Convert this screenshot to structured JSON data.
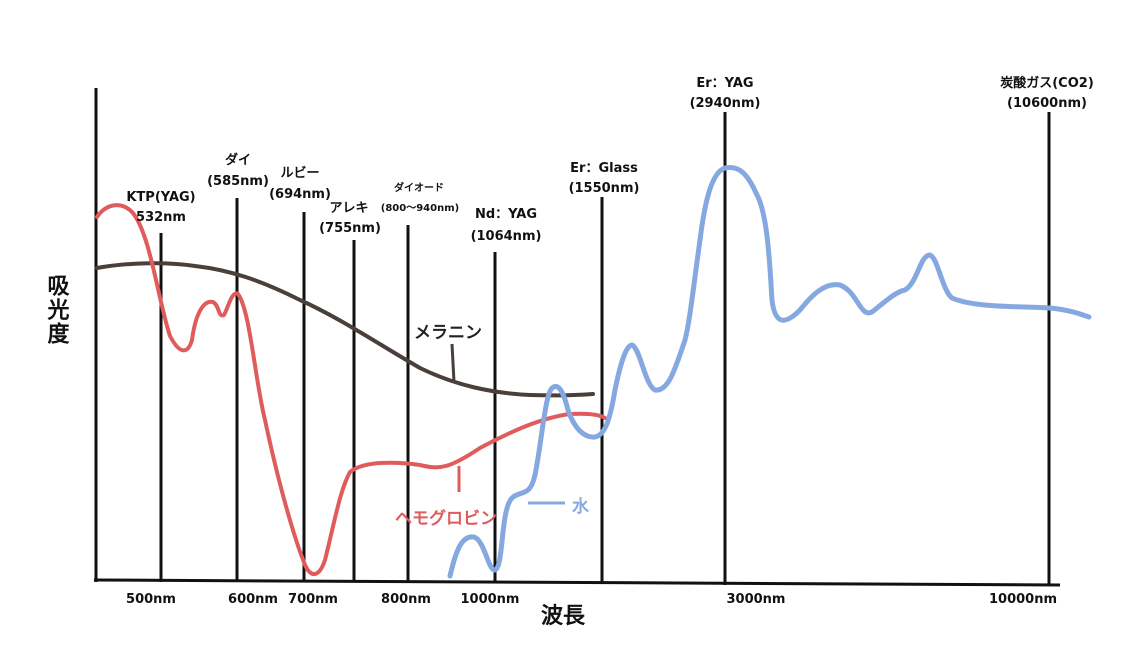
{
  "chart_data": {
    "type": "line",
    "title": "",
    "xlabel": "波長",
    "ylabel": "吸光度",
    "x_ticks": [
      "500nm",
      "600nm",
      "700nm",
      "800nm",
      "1000nm",
      "3000nm",
      "10000nm"
    ],
    "lasers": [
      {
        "name": "KTP(YAG)",
        "wavelength": "532nm"
      },
      {
        "name": "ダイ",
        "wavelength": "(585nm)"
      },
      {
        "name": "ルビー",
        "wavelength": "(694nm)"
      },
      {
        "name": "アレキ",
        "wavelength": "(755nm)"
      },
      {
        "name": "ダイオード",
        "wavelength": "(800〜940nm)"
      },
      {
        "name": "Nd：YAG",
        "wavelength": "(1064nm)"
      },
      {
        "name": "Er：Glass",
        "wavelength": "(1550nm)"
      },
      {
        "name": "Er：YAG",
        "wavelength": "(2940nm)"
      },
      {
        "name": "炭酸ガス(CO2)",
        "wavelength": "(10600nm)"
      }
    ],
    "series": [
      {
        "name": "メラニン",
        "color": "#4a3f3a"
      },
      {
        "name": "ヘモグロビン",
        "color": "#e05b5b"
      },
      {
        "name": "水",
        "color": "#86a8e0"
      }
    ]
  }
}
